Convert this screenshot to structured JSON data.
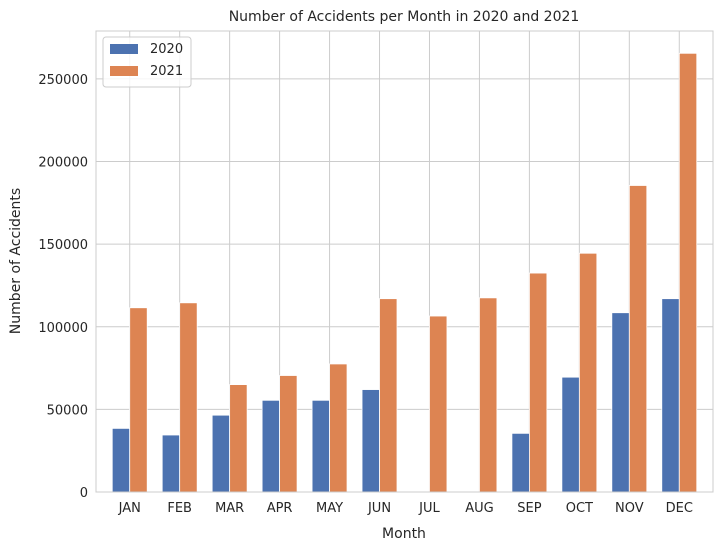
{
  "chart_data": {
    "type": "bar",
    "title": "Number of Accidents per Month in 2020 and 2021",
    "xlabel": "Month",
    "ylabel": "Number of Accidents",
    "categories": [
      "JAN",
      "FEB",
      "MAR",
      "APR",
      "MAY",
      "JUN",
      "JUL",
      "AUG",
      "SEP",
      "OCT",
      "NOV",
      "DEC"
    ],
    "series": [
      {
        "name": "2020",
        "color": "#4c72b0",
        "values": [
          38500,
          34500,
          46500,
          55500,
          55500,
          62000,
          0,
          0,
          35500,
          69500,
          108500,
          117000
        ]
      },
      {
        "name": "2021",
        "color": "#dd8452",
        "values": [
          111500,
          114500,
          65000,
          70500,
          77500,
          117000,
          106500,
          117500,
          132500,
          144500,
          185500,
          265500
        ]
      }
    ],
    "ylim": [
      0,
      279000
    ],
    "yticks": [
      0,
      50000,
      100000,
      150000,
      200000,
      250000
    ],
    "grid": true,
    "legend_position": "top-left"
  }
}
